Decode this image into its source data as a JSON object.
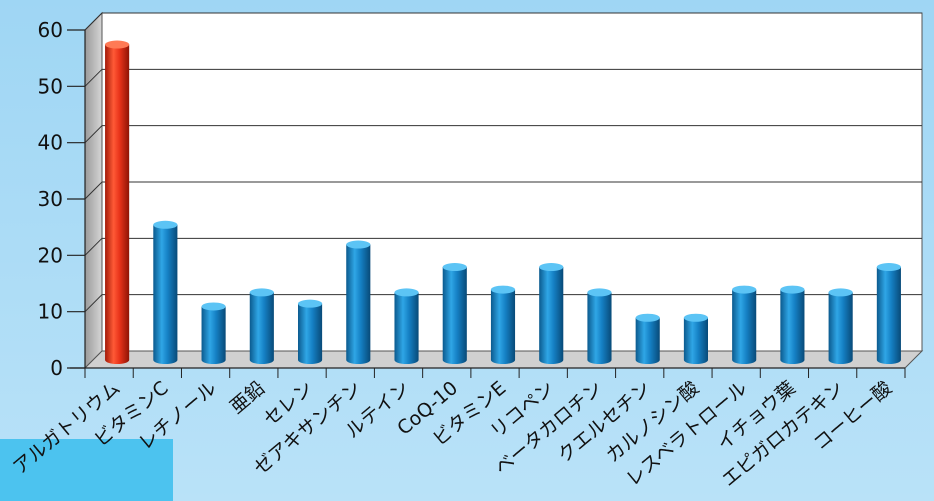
{
  "chart_data": {
    "type": "bar",
    "categories": [
      "アルガトリウム",
      "ビタミンC",
      "レチノール",
      "亜鉛",
      "セレン",
      "ゼアキサンチン",
      "ルテイン",
      "CoQ-10",
      "ビタミンE",
      "リコペン",
      "ベータカロチン",
      "クエルセチン",
      "カルノシン酸",
      "レスベラトロール",
      "イチョウ葉",
      "エピガロカテキン",
      "コーヒー酸"
    ],
    "series": [
      {
        "values": [
          56,
          24,
          9.5,
          12,
          10,
          20.5,
          12,
          16.5,
          12.5,
          16.5,
          12,
          7.5,
          7.5,
          12.5,
          12.5,
          12,
          16.5
        ]
      }
    ],
    "ylim": [
      0,
      60
    ],
    "yticks": [
      0,
      10,
      20,
      30,
      40,
      50,
      60
    ],
    "grid": true,
    "highlight_index": 0,
    "colors": {
      "highlight": "#e8331a",
      "bar": "#1a8fd0",
      "highlight_label_bg": "#4cc3ef",
      "plot_bg": "#ffffff",
      "wall": "#c8c8c8",
      "background": "#b3e0f7"
    }
  }
}
